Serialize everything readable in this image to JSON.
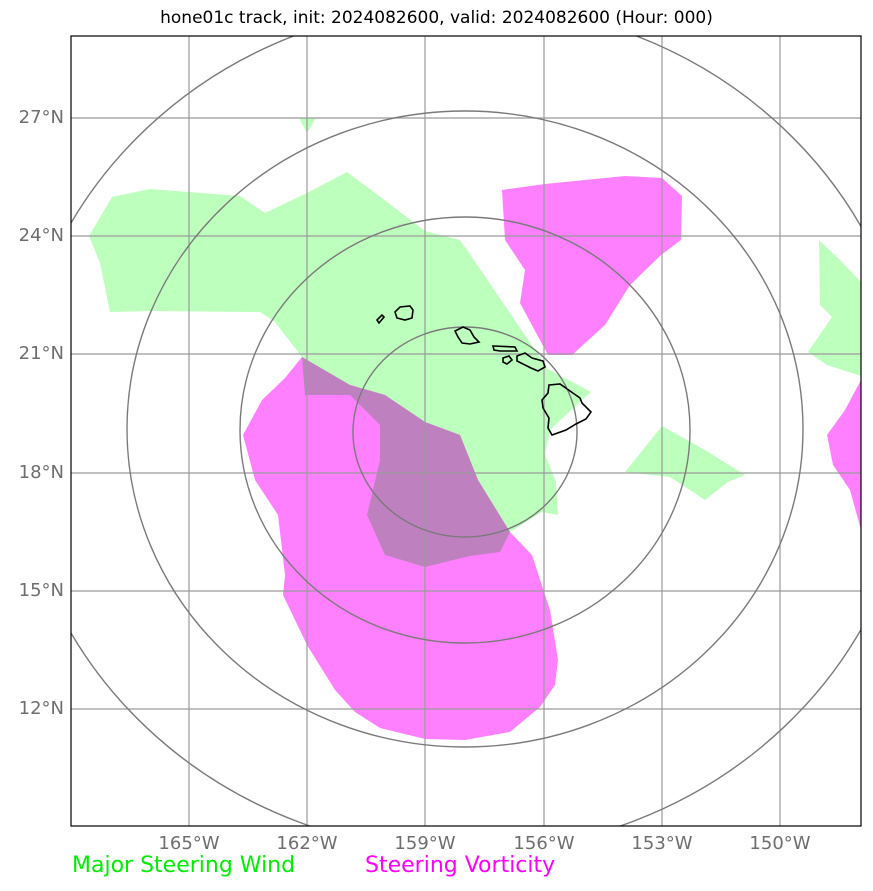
{
  "title": "hone01c track, init: 2024082600, valid: 2024082600 (Hour: 000)",
  "latitude_labels": [
    "27°N",
    "24°N",
    "21°N",
    "18°N",
    "15°N",
    "12°N"
  ],
  "longitude_labels": [
    "165°W",
    "162°W",
    "159°W",
    "156°W",
    "153°W",
    "150°W"
  ],
  "legend": {
    "wind": {
      "label": "Major Steering Wind",
      "color": "#00ee00"
    },
    "vorticity": {
      "label": "Steering Vorticity",
      "color": "#ff00ff"
    }
  },
  "colors": {
    "wind_fill": "#bdffbd",
    "vorticity_fill": "#ff80ff",
    "overlap_fill": "#bf80bf",
    "grid": "#9a9a9a",
    "range_rings": "#7a7a7a",
    "coastline": "#000000"
  }
}
